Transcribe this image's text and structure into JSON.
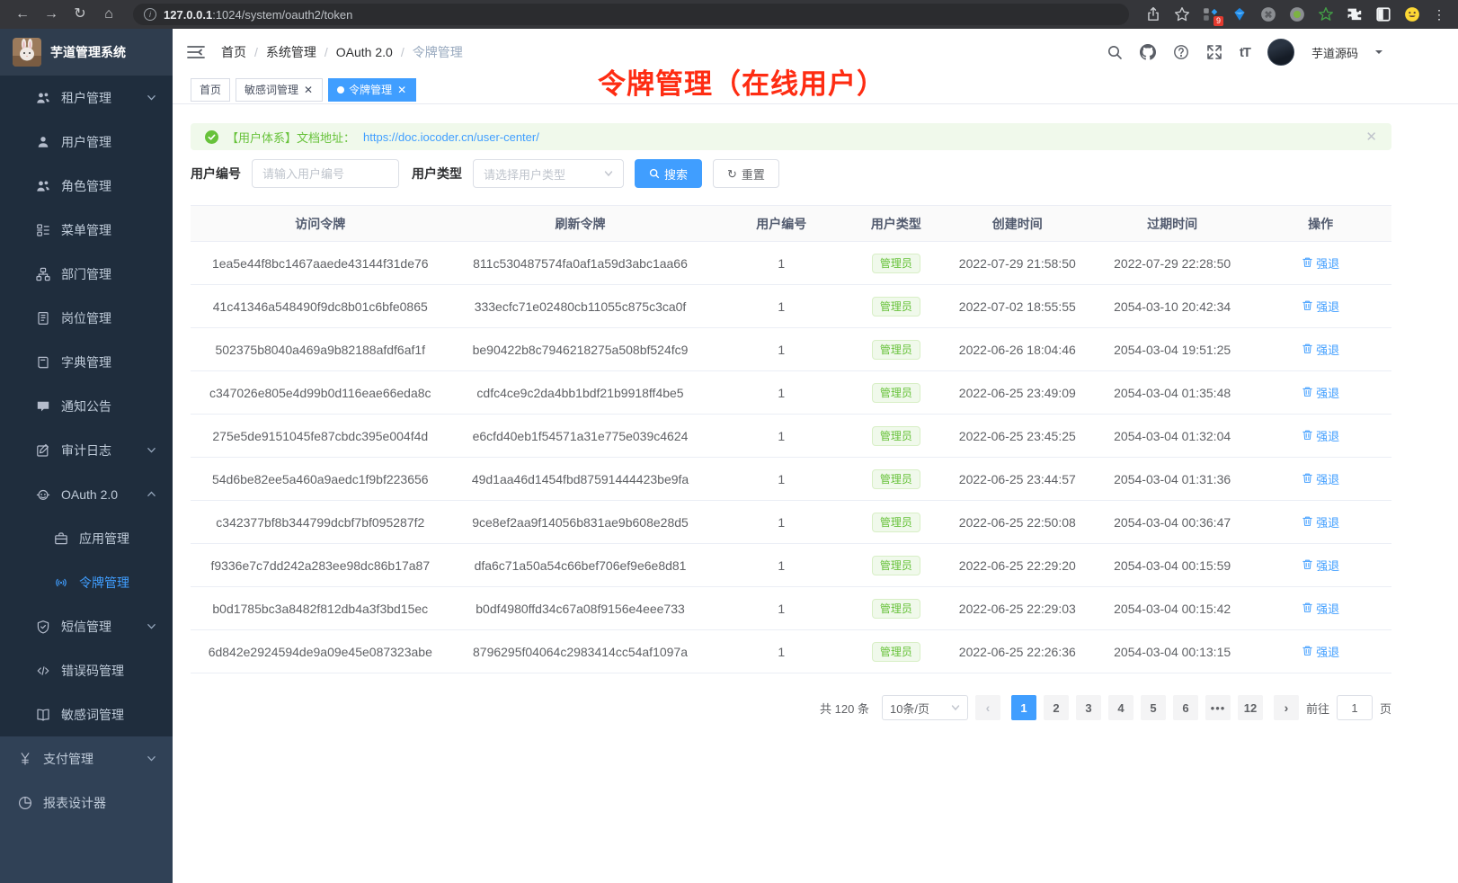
{
  "colors": {
    "accent": "#409eff",
    "success": "#67c23a",
    "annotation_red": "#fe2c12",
    "sidebar_bg": "#304156",
    "submenu_bg": "#1f2d3d"
  },
  "browser": {
    "url_host": "127.0.0.1",
    "url_rest": ":1024/system/oauth2/token",
    "extension_badge": "9"
  },
  "annotation": {
    "text": "令牌管理（在线用户）",
    "color": "#fe2c12"
  },
  "app": {
    "title": "芋道管理系统",
    "breadcrumb": [
      "首页",
      "系统管理",
      "OAuth 2.0",
      "令牌管理"
    ],
    "user_name": "芋道源码",
    "header_icons": [
      "search-icon",
      "github-icon",
      "help-icon",
      "fullscreen-icon",
      "font-size-icon"
    ]
  },
  "tabs": [
    {
      "label": "首页",
      "closable": false,
      "active": false
    },
    {
      "label": "敏感词管理",
      "closable": true,
      "active": false
    },
    {
      "label": "令牌管理",
      "closable": true,
      "active": true
    }
  ],
  "sidebar": {
    "items": [
      {
        "id": "tenant",
        "label": "租户管理",
        "icon": "tenant-users-icon",
        "level": 2,
        "arrow": "down"
      },
      {
        "id": "user",
        "label": "用户管理",
        "icon": "user-icon",
        "level": 2
      },
      {
        "id": "role",
        "label": "角色管理",
        "icon": "role-users-icon",
        "level": 2
      },
      {
        "id": "menu",
        "label": "菜单管理",
        "icon": "menu-tree-icon",
        "level": 2
      },
      {
        "id": "dept",
        "label": "部门管理",
        "icon": "dept-org-icon",
        "level": 2
      },
      {
        "id": "post",
        "label": "岗位管理",
        "icon": "post-badge-icon",
        "level": 2
      },
      {
        "id": "dict",
        "label": "字典管理",
        "icon": "dict-book-icon",
        "level": 2
      },
      {
        "id": "notice",
        "label": "通知公告",
        "icon": "notice-message-icon",
        "level": 2
      },
      {
        "id": "audit-log",
        "label": "审计日志",
        "icon": "audit-log-icon",
        "level": 2,
        "arrow": "down"
      },
      {
        "id": "oauth2",
        "label": "OAuth 2.0",
        "icon": "oauth-robot-icon",
        "level": 2,
        "arrow": "up"
      },
      {
        "id": "oauth2-app",
        "label": "应用管理",
        "icon": "app-briefcase-icon",
        "level": 3
      },
      {
        "id": "oauth2-token",
        "label": "令牌管理",
        "icon": "token-signal-icon",
        "level": 3,
        "active": true
      },
      {
        "id": "sms",
        "label": "短信管理",
        "icon": "sms-shield-icon",
        "level": 2,
        "arrow": "down"
      },
      {
        "id": "error-code",
        "label": "错误码管理",
        "icon": "error-code-icon",
        "level": 2
      },
      {
        "id": "sensitive-word",
        "label": "敏感词管理",
        "icon": "sensitive-word-icon",
        "level": 2
      },
      {
        "id": "pay",
        "label": "支付管理",
        "icon": "pay-yen-icon",
        "level": 1,
        "arrow": "down"
      },
      {
        "id": "report-designer",
        "label": "报表设计器",
        "icon": "report-chart-icon",
        "level": 1
      }
    ]
  },
  "alert": {
    "prefix": "【用户体系】文档地址：",
    "link": "https://doc.iocoder.cn/user-center/"
  },
  "filters": {
    "user_id_label": "用户编号",
    "user_id_placeholder": "请输入用户编号",
    "user_type_label": "用户类型",
    "user_type_placeholder": "请选择用户类型",
    "search_label": "搜索",
    "reset_label": "重置"
  },
  "table": {
    "headers": [
      "访问令牌",
      "刷新令牌",
      "用户编号",
      "用户类型",
      "创建时间",
      "过期时间",
      "操作"
    ],
    "action_label": "强退",
    "rows": [
      {
        "access": "1ea5e44f8bc1467aaede43144f31de76",
        "refresh": "811c530487574fa0af1a59d3abc1aa66",
        "user_id": "1",
        "user_type": "管理员",
        "created": "2022-07-29 21:58:50",
        "expires": "2022-07-29 22:28:50"
      },
      {
        "access": "41c41346a548490f9dc8b01c6bfe0865",
        "refresh": "333ecfc71e02480cb11055c875c3ca0f",
        "user_id": "1",
        "user_type": "管理员",
        "created": "2022-07-02 18:55:55",
        "expires": "2054-03-10 20:42:34"
      },
      {
        "access": "502375b8040a469a9b82188afdf6af1f",
        "refresh": "be90422b8c7946218275a508bf524fc9",
        "user_id": "1",
        "user_type": "管理员",
        "created": "2022-06-26 18:04:46",
        "expires": "2054-03-04 19:51:25"
      },
      {
        "access": "c347026e805e4d99b0d116eae66eda8c",
        "refresh": "cdfc4ce9c2da4bb1bdf21b9918ff4be5",
        "user_id": "1",
        "user_type": "管理员",
        "created": "2022-06-25 23:49:09",
        "expires": "2054-03-04 01:35:48"
      },
      {
        "access": "275e5de9151045fe87cbdc395e004f4d",
        "refresh": "e6cfd40eb1f54571a31e775e039c4624",
        "user_id": "1",
        "user_type": "管理员",
        "created": "2022-06-25 23:45:25",
        "expires": "2054-03-04 01:32:04"
      },
      {
        "access": "54d6be82ee5a460a9aedc1f9bf223656",
        "refresh": "49d1aa46d1454fbd87591444423be9fa",
        "user_id": "1",
        "user_type": "管理员",
        "created": "2022-06-25 23:44:57",
        "expires": "2054-03-04 01:31:36"
      },
      {
        "access": "c342377bf8b344799dcbf7bf095287f2",
        "refresh": "9ce8ef2aa9f14056b831ae9b608e28d5",
        "user_id": "1",
        "user_type": "管理员",
        "created": "2022-06-25 22:50:08",
        "expires": "2054-03-04 00:36:47"
      },
      {
        "access": "f9336e7c7dd242a283ee98dc86b17a87",
        "refresh": "dfa6c71a50a54c66bef706ef9e6e8d81",
        "user_id": "1",
        "user_type": "管理员",
        "created": "2022-06-25 22:29:20",
        "expires": "2054-03-04 00:15:59"
      },
      {
        "access": "b0d1785bc3a8482f812db4a3f3bd15ec",
        "refresh": "b0df4980ffd34c67a08f9156e4eee733",
        "user_id": "1",
        "user_type": "管理员",
        "created": "2022-06-25 22:29:03",
        "expires": "2054-03-04 00:15:42"
      },
      {
        "access": "6d842e2924594de9a09e45e087323abe",
        "refresh": "8796295f04064c2983414cc54af1097a",
        "user_id": "1",
        "user_type": "管理员",
        "created": "2022-06-25 22:26:36",
        "expires": "2054-03-04 00:13:15"
      }
    ]
  },
  "pagination": {
    "total_label": "共 120 条",
    "page_size": "10条/页",
    "pages": [
      "1",
      "2",
      "3",
      "4",
      "5",
      "6",
      "•••",
      "12"
    ],
    "active_page": "1",
    "goto_label": "前往",
    "goto_value": "1",
    "page_label": "页"
  }
}
